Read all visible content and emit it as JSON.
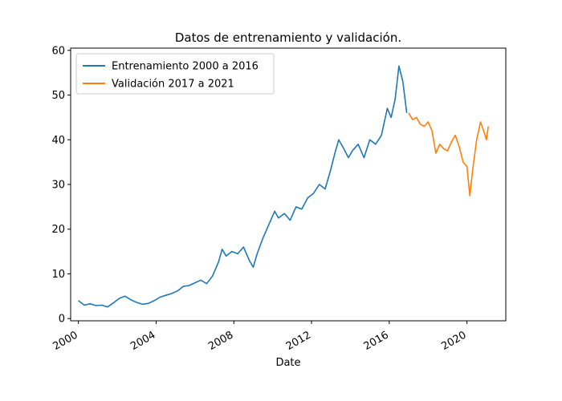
{
  "chart_data": {
    "type": "line",
    "title": "Datos de entrenamiento y validación.",
    "xlabel": "Date",
    "ylabel": "",
    "xlim": [
      1999.6,
      2022.0
    ],
    "ylim": [
      -0.5,
      60.5
    ],
    "x_ticks": [
      {
        "value": 2000,
        "label": "2000"
      },
      {
        "value": 2004,
        "label": "2004"
      },
      {
        "value": 2008,
        "label": "2008"
      },
      {
        "value": 2012,
        "label": "2012"
      },
      {
        "value": 2016,
        "label": "2016"
      },
      {
        "value": 2020,
        "label": "2020"
      }
    ],
    "y_ticks": [
      {
        "value": 0,
        "label": "0"
      },
      {
        "value": 10,
        "label": "10"
      },
      {
        "value": 20,
        "label": "20"
      },
      {
        "value": 30,
        "label": "30"
      },
      {
        "value": 40,
        "label": "40"
      },
      {
        "value": 50,
        "label": "50"
      },
      {
        "value": 60,
        "label": "60"
      }
    ],
    "legend_position": "top-left",
    "grid": false,
    "series": [
      {
        "name": "Entrenamiento 2000 a 2016",
        "color": "#1f77b4",
        "x": [
          2000.0,
          2000.3,
          2000.6,
          2000.9,
          2001.2,
          2001.5,
          2001.8,
          2002.1,
          2002.4,
          2002.7,
          2003.0,
          2003.3,
          2003.6,
          2003.9,
          2004.2,
          2004.5,
          2004.8,
          2005.1,
          2005.4,
          2005.7,
          2006.0,
          2006.3,
          2006.6,
          2006.9,
          2007.2,
          2007.4,
          2007.6,
          2007.9,
          2008.2,
          2008.5,
          2008.8,
          2009.0,
          2009.2,
          2009.5,
          2009.8,
          2010.1,
          2010.3,
          2010.6,
          2010.9,
          2011.2,
          2011.5,
          2011.8,
          2012.1,
          2012.4,
          2012.7,
          2013.0,
          2013.2,
          2013.4,
          2013.6,
          2013.9,
          2014.1,
          2014.4,
          2014.7,
          2015.0,
          2015.3,
          2015.6,
          2015.9,
          2016.1,
          2016.3,
          2016.5,
          2016.7,
          2016.9
        ],
        "y": [
          4.0,
          3.0,
          3.3,
          2.9,
          3.0,
          2.6,
          3.5,
          4.5,
          5.0,
          4.2,
          3.6,
          3.2,
          3.4,
          4.0,
          4.8,
          5.2,
          5.6,
          6.2,
          7.2,
          7.4,
          8.0,
          8.6,
          7.8,
          9.5,
          12.5,
          15.5,
          14.0,
          15.0,
          14.5,
          16.0,
          13.0,
          11.5,
          14.5,
          18.0,
          21.0,
          24.0,
          22.5,
          23.5,
          22.0,
          25.0,
          24.5,
          27.0,
          28.0,
          30.0,
          29.0,
          33.5,
          37.0,
          40.0,
          38.5,
          36.0,
          37.5,
          39.0,
          36.0,
          40.0,
          39.0,
          41.0,
          47.0,
          45.0,
          49.0,
          56.5,
          53.0,
          46.0
        ]
      },
      {
        "name": "Validación 2017 a 2021",
        "color": "#ff7f0e",
        "x": [
          2017.0,
          2017.2,
          2017.4,
          2017.6,
          2017.8,
          2018.0,
          2018.2,
          2018.4,
          2018.6,
          2018.8,
          2019.0,
          2019.2,
          2019.4,
          2019.6,
          2019.8,
          2020.0,
          2020.15,
          2020.3,
          2020.5,
          2020.7,
          2020.9,
          2021.0,
          2021.1
        ],
        "y": [
          46.0,
          44.5,
          45.0,
          43.5,
          43.0,
          44.0,
          42.0,
          37.0,
          39.0,
          38.0,
          37.5,
          39.5,
          41.0,
          38.5,
          35.0,
          34.0,
          27.5,
          33.5,
          40.0,
          44.0,
          41.5,
          40.0,
          43.0
        ]
      }
    ]
  }
}
